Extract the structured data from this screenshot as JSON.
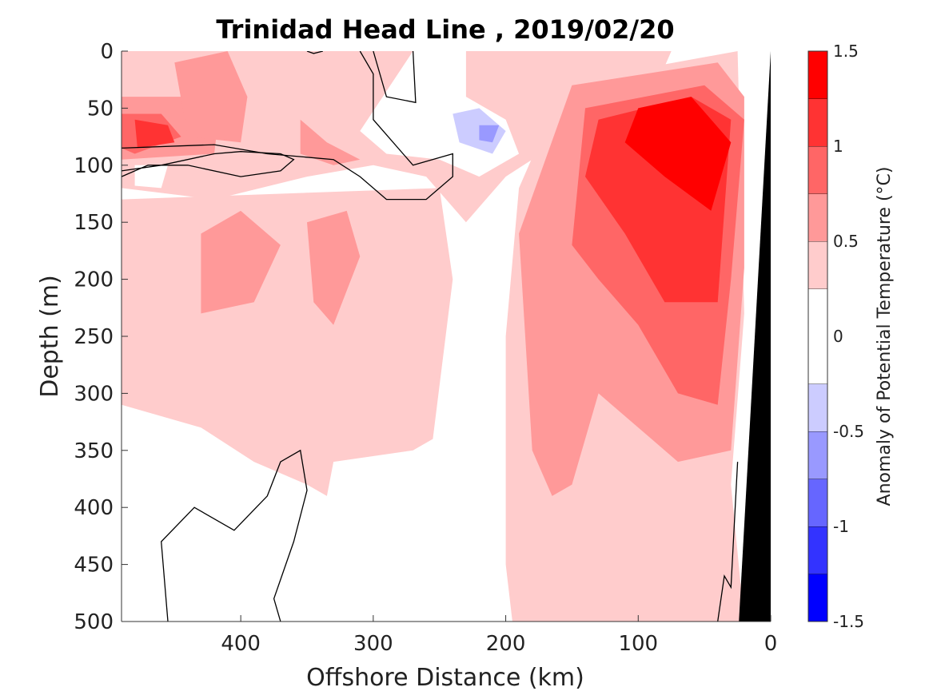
{
  "chart_data": {
    "type": "heatmap",
    "title": "Trinidad Head Line , 2019/02/20",
    "xlabel": "Offshore Distance (km)",
    "ylabel": "Depth (m)",
    "xlim": [
      490,
      0
    ],
    "ylim": [
      0,
      500
    ],
    "x_reversed": true,
    "y_reversed": true,
    "xticks": [
      400,
      300,
      200,
      100,
      0
    ],
    "yticks": [
      0,
      50,
      100,
      150,
      200,
      250,
      300,
      350,
      400,
      450,
      500
    ],
    "colorbar": {
      "label": "Anomaly of Potential Temperature (°C)",
      "range": [
        -1.5,
        1.5
      ],
      "ticks": [
        1.5,
        1,
        0.5,
        0,
        -0.5,
        -1,
        -1.5
      ],
      "levels": [
        -1.5,
        -1.25,
        -1.0,
        -0.75,
        -0.5,
        -0.25,
        0.25,
        0.5,
        0.75,
        1.0,
        1.25,
        1.5
      ],
      "colors": [
        "#0000ff",
        "#3333ff",
        "#6666ff",
        "#9999ff",
        "#ccccff",
        "#ffffff",
        "#ffcccc",
        "#ff9999",
        "#ff6666",
        "#ff3333",
        "#ff0000"
      ]
    },
    "regions": [
      {
        "level": 0.25,
        "polygon": [
          [
            490,
            0
          ],
          [
            75,
            0
          ],
          [
            90,
            40
          ],
          [
            160,
            80
          ],
          [
            200,
            110
          ],
          [
            230,
            150
          ],
          [
            260,
            110
          ],
          [
            300,
            100
          ],
          [
            350,
            110
          ],
          [
            420,
            130
          ],
          [
            490,
            120
          ]
        ]
      },
      {
        "level": 0.25,
        "polygon": [
          [
            490,
            130
          ],
          [
            250,
            120
          ],
          [
            240,
            200
          ],
          [
            255,
            340
          ],
          [
            270,
            350
          ],
          [
            330,
            360
          ],
          [
            335,
            390
          ],
          [
            350,
            380
          ],
          [
            390,
            360
          ],
          [
            430,
            330
          ],
          [
            490,
            310
          ]
        ]
      },
      {
        "level": 0.25,
        "polygon": [
          [
            160,
            40
          ],
          [
            120,
            20
          ],
          [
            25,
            0
          ],
          [
            20,
            230
          ],
          [
            30,
            380
          ],
          [
            20,
            500
          ],
          [
            195,
            500
          ],
          [
            200,
            450
          ],
          [
            200,
            250
          ],
          [
            190,
            120
          ]
        ]
      },
      {
        "level": 0.5,
        "polygon": [
          [
            490,
            40
          ],
          [
            415,
            40
          ],
          [
            420,
            90
          ],
          [
            490,
            95
          ]
        ]
      },
      {
        "level": 0.5,
        "polygon": [
          [
            450,
            10
          ],
          [
            410,
            0
          ],
          [
            395,
            40
          ],
          [
            400,
            80
          ],
          [
            440,
            75
          ]
        ]
      },
      {
        "level": 0.5,
        "polygon": [
          [
            355,
            60
          ],
          [
            335,
            80
          ],
          [
            310,
            95
          ],
          [
            330,
            100
          ],
          [
            355,
            90
          ]
        ]
      },
      {
        "level": 0.5,
        "polygon": [
          [
            430,
            160
          ],
          [
            400,
            140
          ],
          [
            370,
            170
          ],
          [
            390,
            220
          ],
          [
            430,
            230
          ]
        ]
      },
      {
        "level": 0.5,
        "polygon": [
          [
            350,
            150
          ],
          [
            320,
            140
          ],
          [
            310,
            180
          ],
          [
            330,
            240
          ],
          [
            345,
            220
          ]
        ]
      },
      {
        "level": 0.5,
        "polygon": [
          [
            150,
            30
          ],
          [
            40,
            10
          ],
          [
            20,
            40
          ],
          [
            20,
            190
          ],
          [
            30,
            350
          ],
          [
            70,
            360
          ],
          [
            90,
            340
          ],
          [
            130,
            300
          ],
          [
            150,
            380
          ],
          [
            165,
            390
          ],
          [
            180,
            350
          ],
          [
            190,
            160
          ]
        ]
      },
      {
        "level": 0.75,
        "polygon": [
          [
            140,
            50
          ],
          [
            50,
            30
          ],
          [
            20,
            60
          ],
          [
            30,
            200
          ],
          [
            40,
            310
          ],
          [
            70,
            300
          ],
          [
            100,
            240
          ],
          [
            130,
            200
          ],
          [
            150,
            170
          ]
        ]
      },
      {
        "level": 0.75,
        "polygon": [
          [
            490,
            55
          ],
          [
            460,
            55
          ],
          [
            445,
            75
          ],
          [
            480,
            90
          ],
          [
            490,
            85
          ]
        ]
      },
      {
        "level": 1.0,
        "polygon": [
          [
            130,
            60
          ],
          [
            60,
            40
          ],
          [
            30,
            60
          ],
          [
            40,
            220
          ],
          [
            80,
            220
          ],
          [
            110,
            160
          ],
          [
            140,
            110
          ]
        ]
      },
      {
        "level": 1.0,
        "polygon": [
          [
            480,
            60
          ],
          [
            455,
            65
          ],
          [
            450,
            80
          ],
          [
            478,
            85
          ]
        ]
      },
      {
        "level": 1.25,
        "polygon": [
          [
            100,
            50
          ],
          [
            60,
            40
          ],
          [
            30,
            80
          ],
          [
            45,
            140
          ],
          [
            80,
            110
          ],
          [
            110,
            80
          ]
        ]
      },
      {
        "level": -0.25,
        "polygon": [
          [
            270,
            0
          ],
          [
            230,
            0
          ],
          [
            230,
            40
          ],
          [
            200,
            60
          ],
          [
            190,
            90
          ],
          [
            220,
            110
          ],
          [
            250,
            95
          ],
          [
            290,
            90
          ],
          [
            310,
            70
          ]
        ]
      },
      {
        "level": -0.25,
        "polygon": [
          [
            480,
            100
          ],
          [
            455,
            100
          ],
          [
            460,
            120
          ],
          [
            480,
            118
          ]
        ]
      },
      {
        "level": -0.5,
        "polygon": [
          [
            240,
            55
          ],
          [
            220,
            50
          ],
          [
            200,
            70
          ],
          [
            210,
            90
          ],
          [
            235,
            80
          ]
        ]
      },
      {
        "level": -0.75,
        "polygon": [
          [
            220,
            65
          ],
          [
            205,
            65
          ],
          [
            210,
            80
          ],
          [
            220,
            78
          ]
        ]
      }
    ],
    "zero_contours": [
      [
        [
          490,
          85
        ],
        [
          420,
          82
        ],
        [
          380,
          90
        ],
        [
          330,
          95
        ],
        [
          310,
          110
        ],
        [
          290,
          130
        ],
        [
          260,
          130
        ],
        [
          240,
          110
        ],
        [
          240,
          90
        ],
        [
          270,
          100
        ],
        [
          300,
          60
        ],
        [
          300,
          20
        ],
        [
          310,
          0
        ]
      ],
      [
        [
          350,
          0
        ],
        [
          345,
          2
        ],
        [
          338,
          0
        ]
      ],
      [
        [
          270,
          0
        ],
        [
          268,
          45
        ],
        [
          290,
          40
        ],
        [
          300,
          0
        ]
      ],
      [
        [
          490,
          110
        ],
        [
          470,
          100
        ],
        [
          440,
          100
        ],
        [
          400,
          110
        ],
        [
          370,
          105
        ],
        [
          360,
          95
        ],
        [
          370,
          90
        ],
        [
          400,
          88
        ],
        [
          420,
          90
        ],
        [
          460,
          100
        ],
        [
          490,
          105
        ]
      ],
      [
        [
          455,
          500
        ],
        [
          460,
          430
        ],
        [
          435,
          400
        ],
        [
          405,
          420
        ],
        [
          380,
          390
        ],
        [
          370,
          360
        ],
        [
          355,
          350
        ],
        [
          350,
          385
        ],
        [
          360,
          430
        ],
        [
          375,
          480
        ],
        [
          370,
          500
        ]
      ],
      [
        [
          25,
          360
        ],
        [
          30,
          470
        ],
        [
          35,
          460
        ],
        [
          40,
          500
        ]
      ]
    ],
    "bathymetry": [
      [
        0,
        0
      ],
      [
        24,
        500
      ],
      [
        0,
        500
      ]
    ]
  }
}
